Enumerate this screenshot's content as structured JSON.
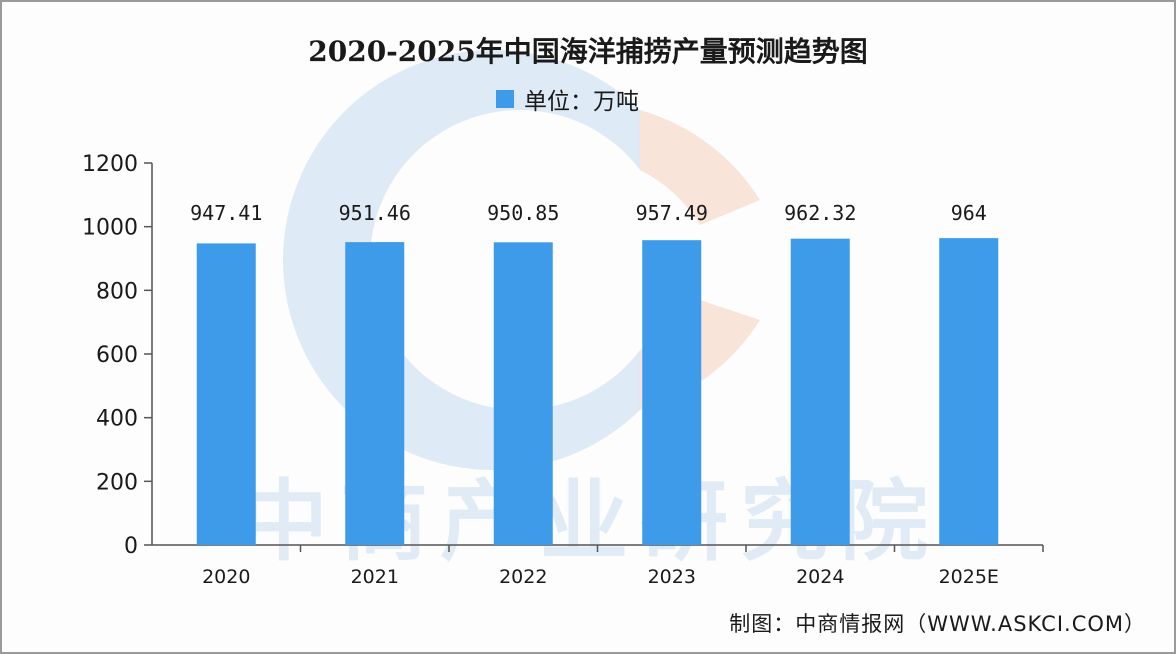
{
  "title": "2020-2025年中国海洋捕捞产量预测趋势图",
  "legend": {
    "label": "单位：万吨",
    "color": "#3d9be9"
  },
  "footer": "制图：中商情报网（WWW.ASKCI.COM）",
  "watermark": "中商产业研究院",
  "chart_data": {
    "type": "bar",
    "title": "2020-2025年中国海洋捕捞产量预测趋势图",
    "unit": "单位：万吨",
    "categories": [
      "2020",
      "2021",
      "2022",
      "2023",
      "2024",
      "2025E"
    ],
    "values": [
      947.41,
      951.46,
      950.85,
      957.49,
      962.32,
      964
    ],
    "value_labels": [
      "947.41",
      "951.46",
      "950.85",
      "957.49",
      "962.32",
      "964"
    ],
    "ylim": [
      0,
      1200
    ],
    "yticks": [
      0,
      200,
      400,
      600,
      800,
      1000,
      1200
    ],
    "ytick_labels": [
      "0",
      "200",
      "400",
      "600",
      "800",
      "1000",
      "1200"
    ],
    "grid": false,
    "legend_position": "top-center",
    "bar_color": "#3d9be9"
  }
}
